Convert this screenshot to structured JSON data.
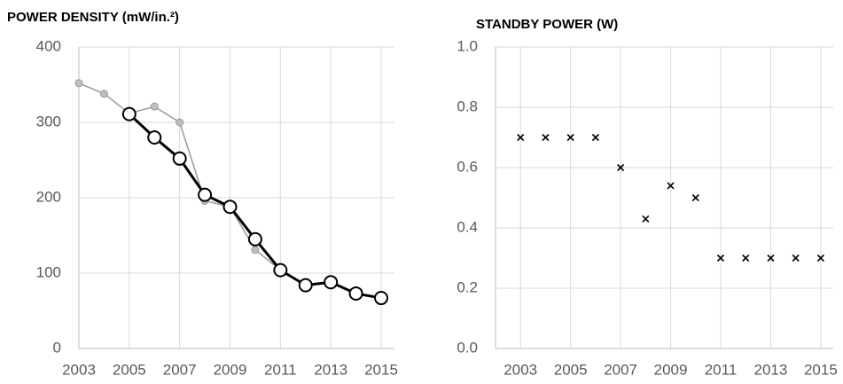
{
  "chart_data": [
    {
      "type": "line",
      "title": "POWER DENSITY (mW/in.²)",
      "xlim": [
        2003,
        2015
      ],
      "xticks": [
        2003,
        2005,
        2007,
        2009,
        2011,
        2013,
        2015
      ],
      "ylim": [
        0,
        400
      ],
      "yticks": [
        0,
        100,
        200,
        300,
        400
      ],
      "grid": true,
      "series": [
        {
          "color": "#999999",
          "marker": "filled-circle",
          "x": [
            2003,
            2004,
            2005,
            2006,
            2007,
            2008,
            2009,
            2010,
            2011,
            2012,
            2013,
            2014,
            2015
          ],
          "values": [
            352,
            338,
            312,
            321,
            300,
            196,
            188,
            131,
            104,
            84,
            88,
            73,
            67
          ]
        },
        {
          "color": "#000000",
          "marker": "open-circle",
          "x": [
            2005,
            2006,
            2007,
            2008,
            2009,
            2010,
            2011,
            2012,
            2013,
            2014,
            2015
          ],
          "values": [
            311,
            280,
            252,
            204,
            188,
            145,
            104,
            84,
            88,
            73,
            67
          ]
        }
      ]
    },
    {
      "type": "scatter",
      "title": "STANDBY POWER (W)",
      "xlim": [
        2002,
        2015.5
      ],
      "xticks": [
        2003,
        2005,
        2007,
        2009,
        2011,
        2013,
        2015
      ],
      "ylim": [
        0,
        1
      ],
      "yticks": [
        {
          "value": 0,
          "label": "0.0"
        },
        {
          "value": 0.2,
          "label": "0.2"
        },
        {
          "value": 0.4,
          "label": "0.4"
        },
        {
          "value": 0.6,
          "label": "0.6"
        },
        {
          "value": 0.8,
          "label": "0.8"
        },
        {
          "value": 1,
          "label": "1.0"
        }
      ],
      "grid": true,
      "series": [
        {
          "color": "#000000",
          "marker": "x",
          "x": [
            2003,
            2004,
            2005,
            2006,
            2007,
            2008,
            2009,
            2010,
            2011,
            2012,
            2013,
            2014,
            2015
          ],
          "values": [
            0.7,
            0.7,
            0.7,
            0.7,
            0.6,
            0.43,
            0.54,
            0.5,
            0.3,
            0.3,
            0.3,
            0.3,
            0.3
          ]
        }
      ]
    }
  ]
}
